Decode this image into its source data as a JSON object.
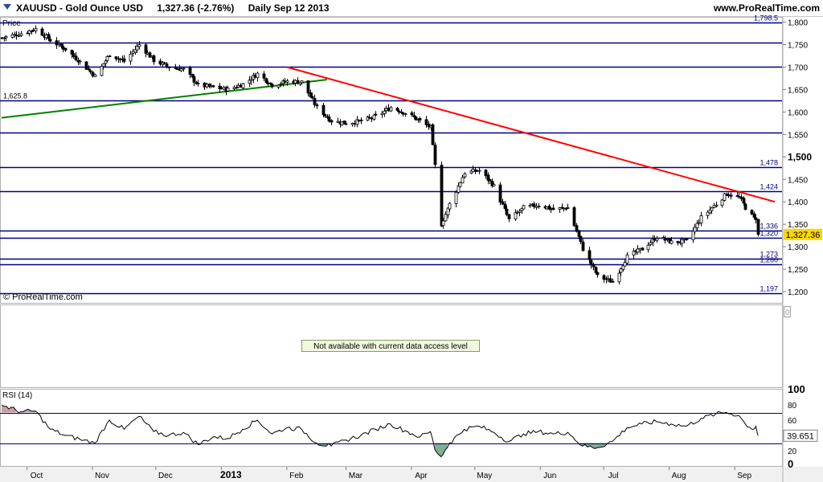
{
  "header": {
    "symbol_title": "XAUUSD - Gold Ounce USD",
    "last_change": "1,327.36 (-2.76%)",
    "period_date": "Daily  Sep 12 2013",
    "site": "www.ProRealTime.com"
  },
  "price_panel": {
    "label": "Price",
    "watermark": "© ProRealTime.com",
    "current_price_tag": "1,327.36"
  },
  "middle_panel": {
    "message": "Not available with current data access level",
    "scale_marker": "0"
  },
  "rsi_panel": {
    "label": "RSI (14)",
    "current_value_tag": "39.651"
  },
  "colors": {
    "resistance_line": "#ff0000",
    "support_trend_line": "#008000",
    "horizontal_levels": "#000080",
    "price_tag_bg": "#ffd700",
    "rsi_line": "#000000",
    "rsi_overbought_fill": "#c8a0a0",
    "rsi_oversold_fill": "#80b090"
  },
  "chart_data": [
    {
      "type": "candlestick",
      "title": "XAUUSD - Gold Ounce USD",
      "ylim": [
        1175,
        1810
      ],
      "yticks": [
        1200,
        1250,
        1300,
        1350,
        1400,
        1450,
        1500,
        1550,
        1600,
        1650,
        1700,
        1750,
        1800
      ],
      "ytick_labels": [
        "1,200",
        "1,250",
        "1,300",
        "1,350",
        "1,400",
        "1,450",
        "1,500",
        "1,550",
        "1,600",
        "1,650",
        "1,700",
        "1,750",
        "1,800"
      ],
      "xlim": [
        "2012-09-19",
        "2013-09-23"
      ],
      "x_ticks": [
        {
          "date": "2012-10-01",
          "label": "Oct"
        },
        {
          "date": "2012-11-01",
          "label": "Nov"
        },
        {
          "date": "2012-12-01",
          "label": "Dec"
        },
        {
          "date": "2013-01-01",
          "label": "2013"
        },
        {
          "date": "2013-02-01",
          "label": "Feb"
        },
        {
          "date": "2013-03-01",
          "label": "Mar"
        },
        {
          "date": "2013-04-01",
          "label": "Apr"
        },
        {
          "date": "2013-05-01",
          "label": "May"
        },
        {
          "date": "2013-06-01",
          "label": "Jun"
        },
        {
          "date": "2013-07-01",
          "label": "Jul"
        },
        {
          "date": "2013-08-01",
          "label": "Aug"
        },
        {
          "date": "2013-09-01",
          "label": "Sep"
        }
      ],
      "horizontal_levels": [
        {
          "value": 1798.5,
          "label": "1,798.5"
        },
        {
          "value": 1755,
          "label": ""
        },
        {
          "value": 1700,
          "label": ""
        },
        {
          "value": 1625.8,
          "label": "1,625.8"
        },
        {
          "value": 1555,
          "label": ""
        },
        {
          "value": 1478,
          "label": "1,478"
        },
        {
          "value": 1424,
          "label": "1,424"
        },
        {
          "value": 1336,
          "label": "1,336"
        },
        {
          "value": 1320,
          "label": "1,320"
        },
        {
          "value": 1273,
          "label": "1,273"
        },
        {
          "value": 1260,
          "label": "1,260"
        },
        {
          "value": 1197,
          "label": "1,197"
        }
      ],
      "trend_lines": [
        {
          "name": "resistance",
          "points": [
            [
              "2013-02-01",
              1700
            ],
            [
              "2013-09-20",
              1400
            ]
          ]
        },
        {
          "name": "support",
          "points": [
            [
              "2012-09-19",
              1587
            ],
            [
              "2013-02-20",
              1672
            ]
          ]
        }
      ],
      "close_path": [
        [
          "2012-09-19",
          1765
        ],
        [
          "2012-09-28",
          1775
        ],
        [
          "2012-10-05",
          1785
        ],
        [
          "2012-10-12",
          1760
        ],
        [
          "2012-10-19",
          1740
        ],
        [
          "2012-10-26",
          1712
        ],
        [
          "2012-11-02",
          1680
        ],
        [
          "2012-11-09",
          1728
        ],
        [
          "2012-11-16",
          1713
        ],
        [
          "2012-11-23",
          1750
        ],
        [
          "2012-11-30",
          1715
        ],
        [
          "2012-12-07",
          1700
        ],
        [
          "2012-12-14",
          1695
        ],
        [
          "2012-12-21",
          1660
        ],
        [
          "2012-12-28",
          1655
        ],
        [
          "2013-01-04",
          1650
        ],
        [
          "2013-01-11",
          1662
        ],
        [
          "2013-01-18",
          1685
        ],
        [
          "2013-01-25",
          1660
        ],
        [
          "2013-02-01",
          1668
        ],
        [
          "2013-02-08",
          1667
        ],
        [
          "2013-02-15",
          1610
        ],
        [
          "2013-02-22",
          1580
        ],
        [
          "2013-03-01",
          1575
        ],
        [
          "2013-03-08",
          1580
        ],
        [
          "2013-03-15",
          1590
        ],
        [
          "2013-03-22",
          1610
        ],
        [
          "2013-03-29",
          1598
        ],
        [
          "2013-04-05",
          1580
        ],
        [
          "2013-04-10",
          1565
        ],
        [
          "2013-04-12",
          1480
        ],
        [
          "2013-04-15",
          1350
        ],
        [
          "2013-04-19",
          1395
        ],
        [
          "2013-04-26",
          1465
        ],
        [
          "2013-05-03",
          1470
        ],
        [
          "2013-05-10",
          1435
        ],
        [
          "2013-05-17",
          1360
        ],
        [
          "2013-05-24",
          1387
        ],
        [
          "2013-05-31",
          1393
        ],
        [
          "2013-06-07",
          1383
        ],
        [
          "2013-06-14",
          1387
        ],
        [
          "2013-06-21",
          1295
        ],
        [
          "2013-06-28",
          1234
        ],
        [
          "2013-07-05",
          1222
        ],
        [
          "2013-07-12",
          1278
        ],
        [
          "2013-07-19",
          1295
        ],
        [
          "2013-07-26",
          1322
        ],
        [
          "2013-08-02",
          1310
        ],
        [
          "2013-08-09",
          1312
        ],
        [
          "2013-08-16",
          1365
        ],
        [
          "2013-08-23",
          1395
        ],
        [
          "2013-08-28",
          1418
        ],
        [
          "2013-09-03",
          1410
        ],
        [
          "2013-09-06",
          1387
        ],
        [
          "2013-09-10",
          1363
        ],
        [
          "2013-09-11",
          1364
        ],
        [
          "2013-09-12",
          1327.36
        ]
      ]
    },
    {
      "type": "line",
      "title": "RSI (14)",
      "ylim": [
        0,
        100
      ],
      "yticks": [
        0,
        20,
        40,
        60,
        80,
        100
      ],
      "ytick_labels": [
        "0",
        "20",
        "40",
        "60",
        "80",
        "100"
      ],
      "levels": [
        30,
        70
      ],
      "series": [
        {
          "name": "RSI (14)",
          "points": [
            [
              "2012-09-19",
              80
            ],
            [
              "2012-09-28",
              71
            ],
            [
              "2012-10-05",
              72
            ],
            [
              "2012-10-12",
              48
            ],
            [
              "2012-10-19",
              40
            ],
            [
              "2012-10-26",
              35
            ],
            [
              "2012-11-02",
              30
            ],
            [
              "2012-11-09",
              60
            ],
            [
              "2012-11-16",
              48
            ],
            [
              "2012-11-23",
              65
            ],
            [
              "2012-11-30",
              45
            ],
            [
              "2012-12-07",
              40
            ],
            [
              "2012-12-14",
              44
            ],
            [
              "2012-12-21",
              28
            ],
            [
              "2012-12-28",
              38
            ],
            [
              "2013-01-04",
              36
            ],
            [
              "2013-01-11",
              48
            ],
            [
              "2013-01-18",
              60
            ],
            [
              "2013-01-25",
              42
            ],
            [
              "2013-02-01",
              50
            ],
            [
              "2013-02-08",
              48
            ],
            [
              "2013-02-15",
              30
            ],
            [
              "2013-02-22",
              26
            ],
            [
              "2013-03-01",
              34
            ],
            [
              "2013-03-08",
              40
            ],
            [
              "2013-03-15",
              48
            ],
            [
              "2013-03-22",
              55
            ],
            [
              "2013-03-29",
              46
            ],
            [
              "2013-04-05",
              38
            ],
            [
              "2013-04-10",
              45
            ],
            [
              "2013-04-12",
              22
            ],
            [
              "2013-04-15",
              12
            ],
            [
              "2013-04-19",
              30
            ],
            [
              "2013-04-26",
              48
            ],
            [
              "2013-05-03",
              52
            ],
            [
              "2013-05-10",
              44
            ],
            [
              "2013-05-17",
              32
            ],
            [
              "2013-05-24",
              42
            ],
            [
              "2013-05-31",
              45
            ],
            [
              "2013-06-07",
              42
            ],
            [
              "2013-06-14",
              44
            ],
            [
              "2013-06-21",
              26
            ],
            [
              "2013-06-28",
              24
            ],
            [
              "2013-07-05",
              32
            ],
            [
              "2013-07-12",
              50
            ],
            [
              "2013-07-19",
              55
            ],
            [
              "2013-07-26",
              58
            ],
            [
              "2013-08-02",
              55
            ],
            [
              "2013-08-09",
              52
            ],
            [
              "2013-08-16",
              62
            ],
            [
              "2013-08-23",
              68
            ],
            [
              "2013-08-28",
              70
            ],
            [
              "2013-09-03",
              66
            ],
            [
              "2013-09-06",
              55
            ],
            [
              "2013-09-10",
              48
            ],
            [
              "2013-09-11",
              52
            ],
            [
              "2013-09-12",
              39.651
            ]
          ]
        }
      ]
    }
  ]
}
